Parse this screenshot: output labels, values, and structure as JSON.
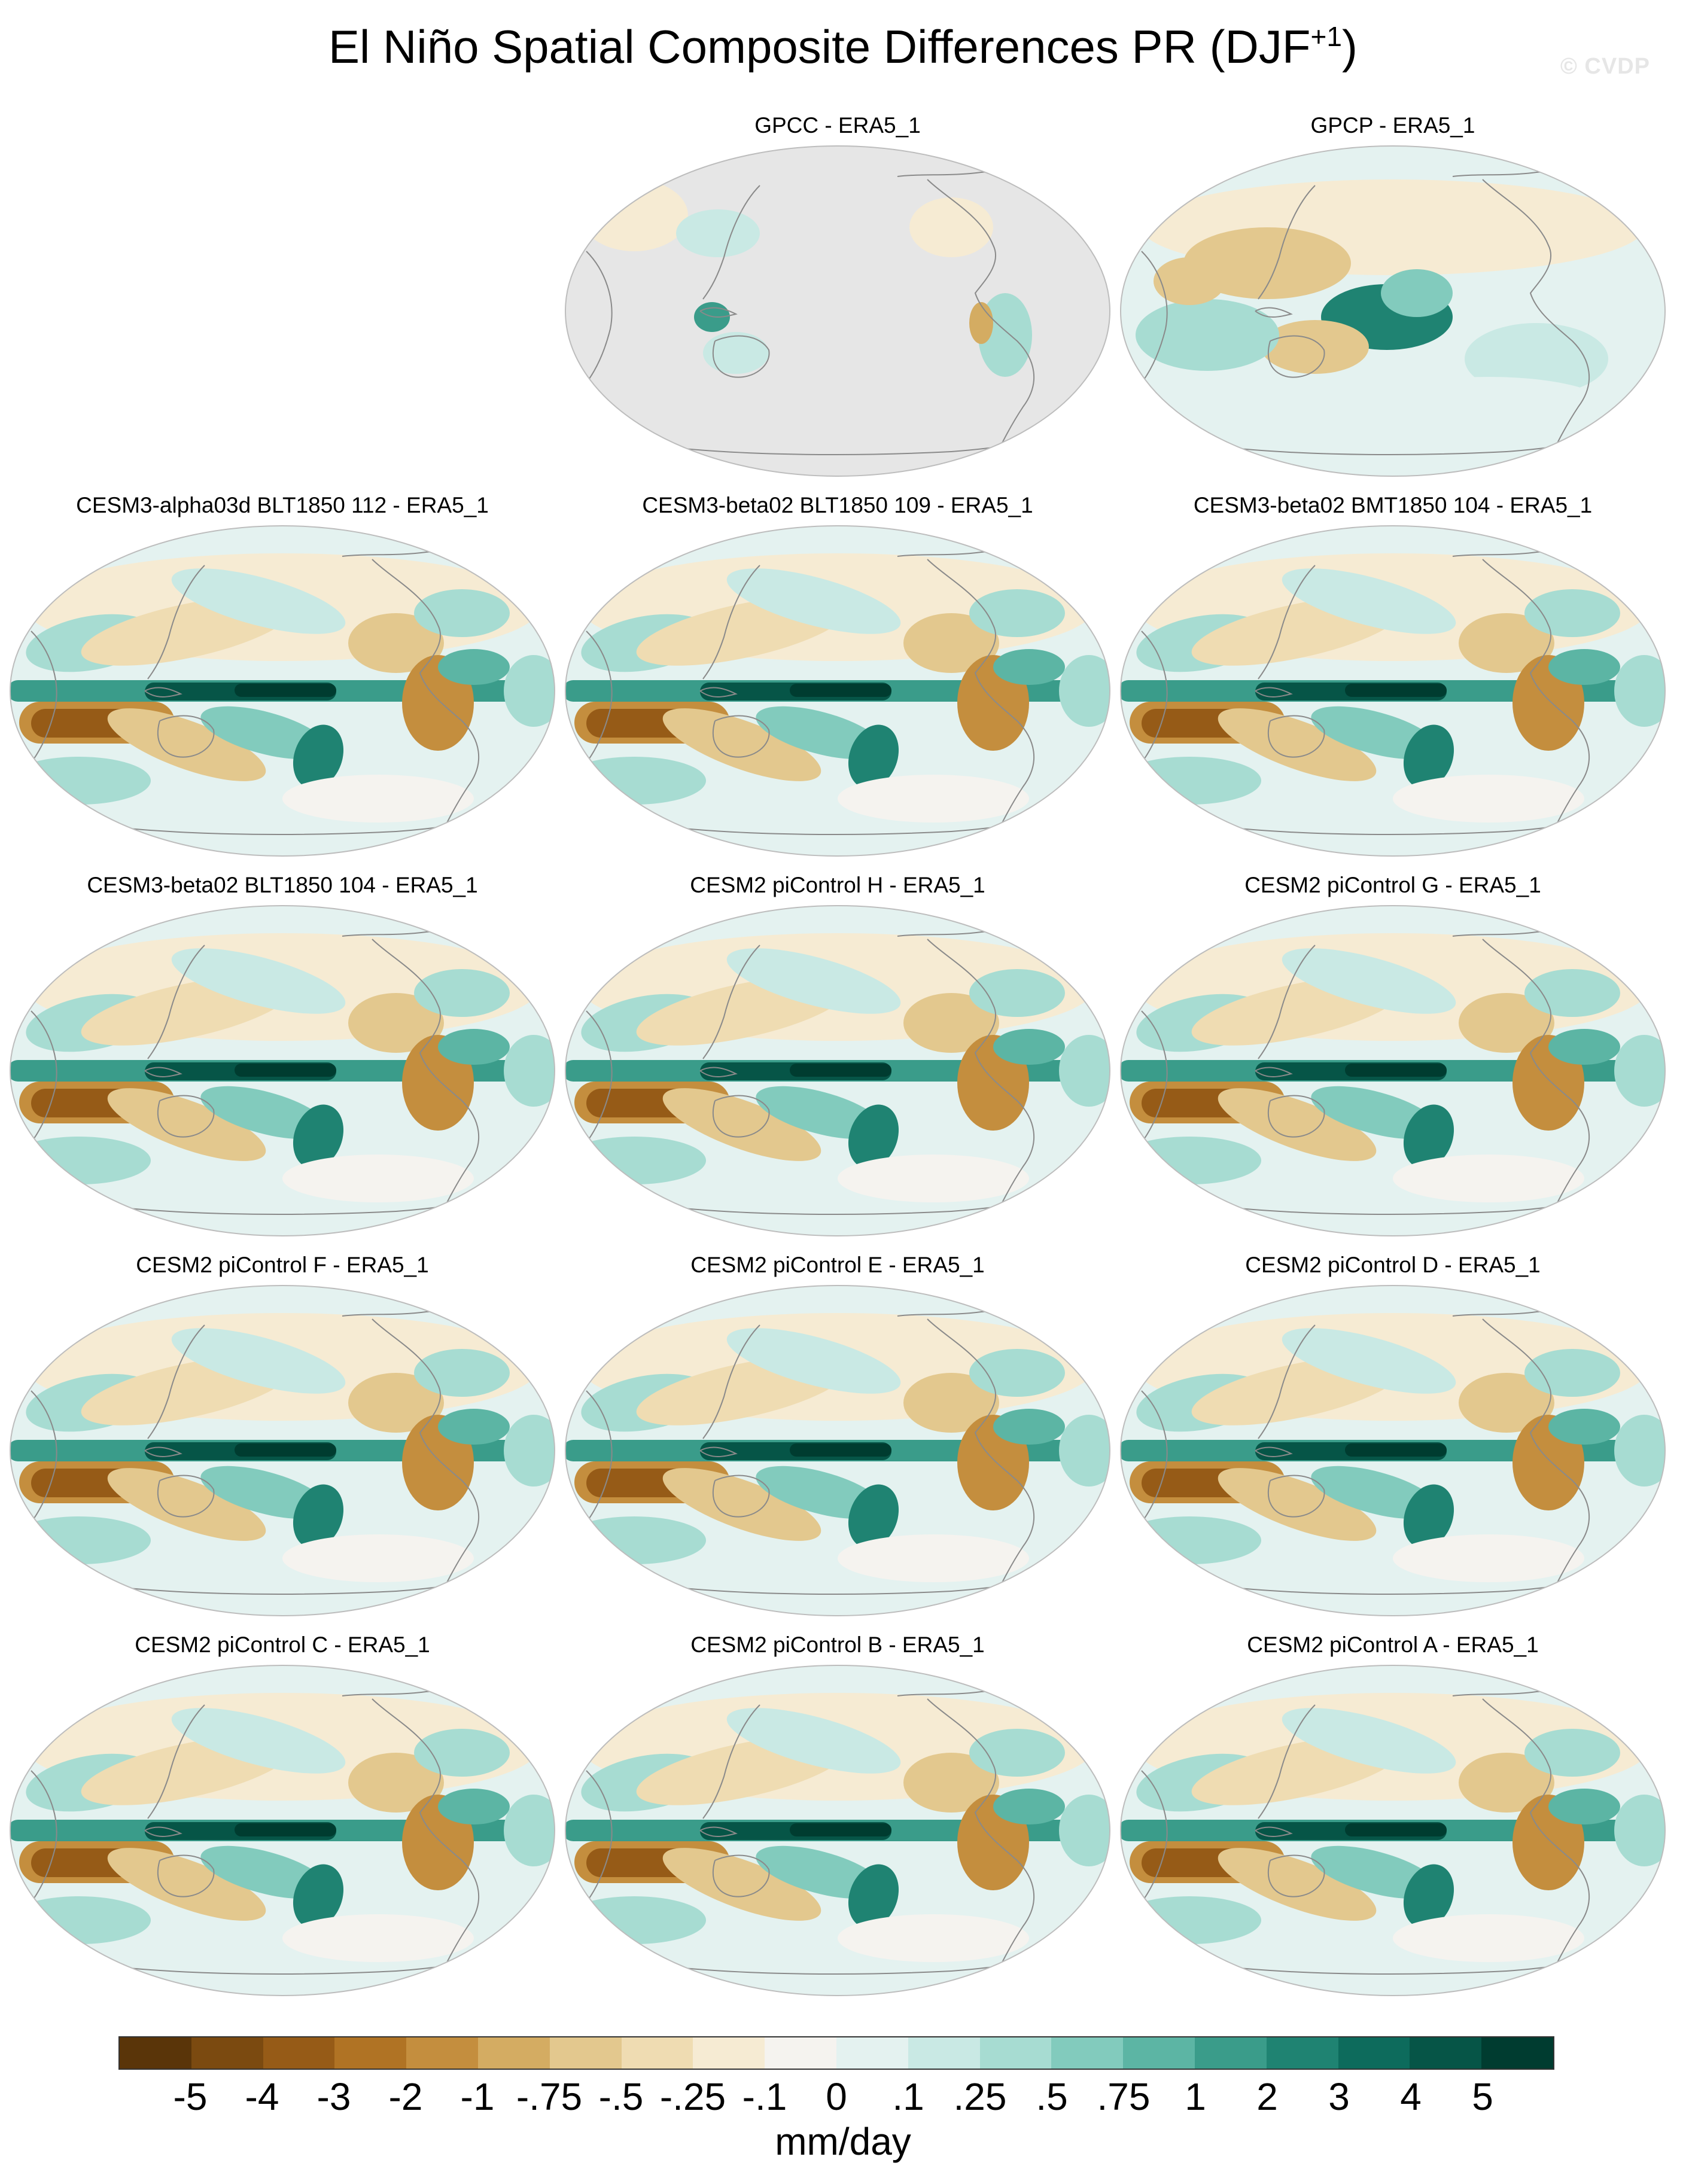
{
  "figure": {
    "title_main": "El Niño Spatial Composite Differences PR (DJF",
    "title_sup": "+1",
    "title_close": ")",
    "watermark": "© CVDP",
    "land_mask_color": "#e6e6e6",
    "coast_color": "#8a8a8a"
  },
  "panels": [
    {
      "label": "GPCC - ERA5_1",
      "style": "gpcc"
    },
    {
      "label": "GPCP - ERA5_1",
      "style": "gpcp"
    },
    {
      "label": "CESM3-alpha03d BLT1850 112 - ERA5_1",
      "style": "model"
    },
    {
      "label": "CESM3-beta02 BLT1850 109 - ERA5_1",
      "style": "model"
    },
    {
      "label": "CESM3-beta02 BMT1850 104 - ERA5_1",
      "style": "model"
    },
    {
      "label": "CESM3-beta02 BLT1850 104 - ERA5_1",
      "style": "model"
    },
    {
      "label": "CESM2 piControl H - ERA5_1",
      "style": "model"
    },
    {
      "label": "CESM2 piControl G - ERA5_1",
      "style": "model"
    },
    {
      "label": "CESM2 piControl F - ERA5_1",
      "style": "model"
    },
    {
      "label": "CESM2 piControl E - ERA5_1",
      "style": "model"
    },
    {
      "label": "CESM2 piControl D - ERA5_1",
      "style": "model"
    },
    {
      "label": "CESM2 piControl C - ERA5_1",
      "style": "model"
    },
    {
      "label": "CESM2 piControl B - ERA5_1",
      "style": "model"
    },
    {
      "label": "CESM2 piControl A - ERA5_1",
      "style": "model"
    }
  ],
  "colorbar": {
    "colors": [
      "#5a3509",
      "#7b4a10",
      "#965b17",
      "#b07324",
      "#c48e3e",
      "#d4ac62",
      "#e3c88e",
      "#efdcb2",
      "#f6ebd3",
      "#f5f3ef",
      "#e4f2f0",
      "#c9e9e4",
      "#a7dcd2",
      "#82cbbd",
      "#5cb5a4",
      "#3a9c8a",
      "#1f8372",
      "#0d6b5c",
      "#065547",
      "#003c30"
    ],
    "labels": [
      "-5",
      "-4",
      "-3",
      "-2",
      "-1",
      "-.75",
      "-.5",
      "-.25",
      "-.1",
      "0",
      ".1",
      ".25",
      ".5",
      ".75",
      "1",
      "2",
      "3",
      "4",
      "5"
    ],
    "units": "mm/day"
  }
}
